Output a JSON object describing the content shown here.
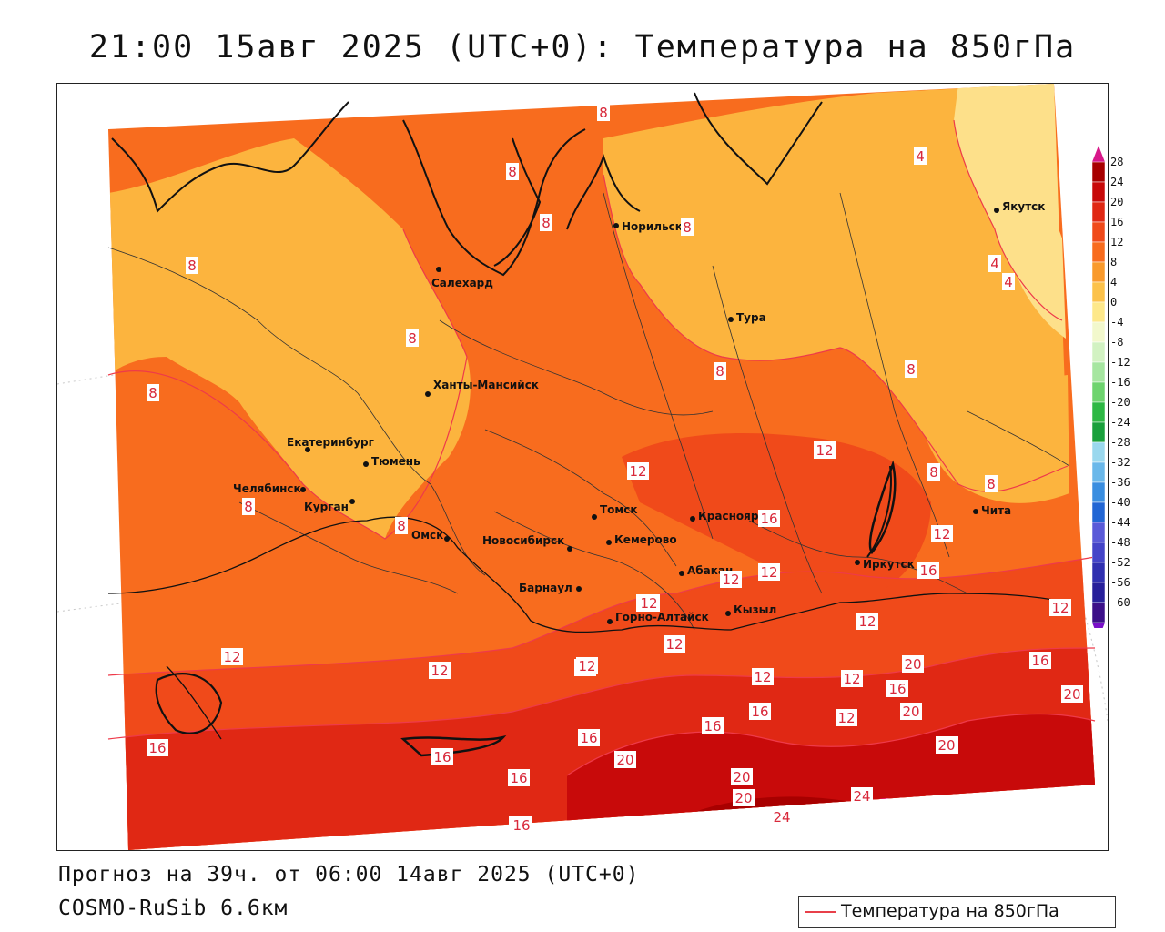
{
  "title": "21:00 15авг 2025 (UTC+0): Температура на 850гПа",
  "footer": {
    "forecast": "Прогноз на 39ч. от 06:00 14авг 2025 (UTC+0)",
    "model": "COSMO-RuSib 6.6км"
  },
  "legend": {
    "label": "Температура на 850гПа",
    "line_color": "#e8404a"
  },
  "colorbar": {
    "levels": [
      28,
      24,
      20,
      16,
      12,
      8,
      4,
      0,
      -4,
      -8,
      -12,
      -16,
      -20,
      -24,
      -28,
      -32,
      -36,
      -40,
      -44,
      -48,
      -52,
      -56,
      -60
    ],
    "labels": [
      "28",
      "24",
      "20",
      "16",
      "12",
      "8",
      "4",
      "0",
      "-4",
      "-8",
      "-12",
      "-16",
      "-20",
      "-24",
      "-28",
      "-32",
      "-36",
      "-40",
      "-44",
      "-48",
      "-52",
      "-56",
      "-60"
    ],
    "colors": [
      "#a80000",
      "#c80a0a",
      "#e02814",
      "#f04a1a",
      "#f86c1e",
      "#f99a2c",
      "#fcc24a",
      "#fde88a",
      "#f2f8cc",
      "#d2f2c2",
      "#a6e6a0",
      "#6ed46e",
      "#2eb844",
      "#1aa03c",
      "#9ad8ee",
      "#6ab8ea",
      "#3a8ee0",
      "#2266d4",
      "#5a5ad8",
      "#4444c8",
      "#3030b0",
      "#28209a",
      "#3c1088"
    ],
    "top_arrow_color": "#d8188a",
    "bottom_arrow_color": "#7a10c8"
  },
  "cities": [
    {
      "name": "Норильск"
    },
    {
      "name": "Салехард"
    },
    {
      "name": "Тура"
    },
    {
      "name": "Якутск"
    },
    {
      "name": "Ханты-Мансийск"
    },
    {
      "name": "Екатеринбург"
    },
    {
      "name": "Тюмень"
    },
    {
      "name": "Челябинск"
    },
    {
      "name": "Курган"
    },
    {
      "name": "Омск"
    },
    {
      "name": "Новосибирск"
    },
    {
      "name": "Томск"
    },
    {
      "name": "Кемерово"
    },
    {
      "name": "Барнаул"
    },
    {
      "name": "Горно-Алтайск"
    },
    {
      "name": "Красноярск"
    },
    {
      "name": "Абакан"
    },
    {
      "name": "Кызыл"
    },
    {
      "name": "Иркутск"
    },
    {
      "name": "Чита"
    }
  ],
  "isotherm_labels": [
    "4",
    "4",
    "4",
    "8",
    "8",
    "8",
    "8",
    "8",
    "8",
    "8",
    "8",
    "8",
    "8",
    "8",
    "8",
    "8",
    "8",
    "12",
    "12",
    "12",
    "12",
    "12",
    "12",
    "12",
    "12",
    "12",
    "12",
    "12",
    "12",
    "12",
    "12",
    "12",
    "12",
    "12",
    "16",
    "16",
    "16",
    "16",
    "16",
    "16",
    "16",
    "16",
    "16",
    "16",
    "16",
    "16",
    "20",
    "20",
    "20",
    "20",
    "20",
    "20",
    "20",
    "20",
    "24",
    "24"
  ]
}
